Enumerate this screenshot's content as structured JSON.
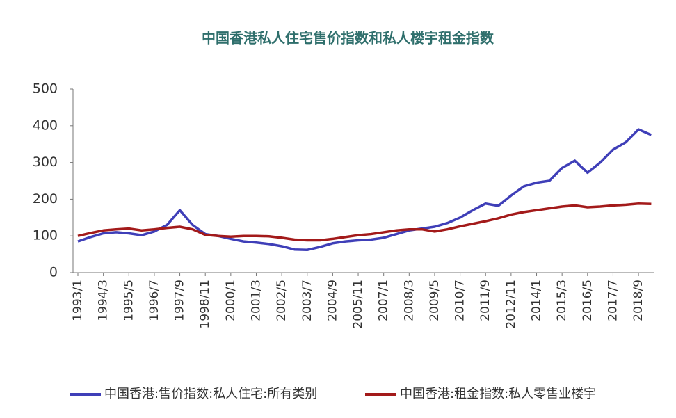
{
  "chart_data": {
    "type": "line",
    "title": "中国香港私人住宅售价指数和私人楼宇租金指数",
    "categories": [
      "1993/1",
      null,
      "1994/3",
      null,
      "1995/5",
      null,
      "1996/7",
      null,
      "1997/9",
      null,
      "1998/11",
      null,
      "2000/1",
      null,
      "2001/3",
      null,
      "2002/5",
      null,
      "2003/7",
      null,
      "2004/9",
      null,
      "2005/11",
      null,
      "2007/1",
      null,
      "2008/3",
      null,
      "2009/5",
      null,
      "2010/7",
      null,
      "2011/9",
      null,
      "2012/11",
      null,
      "2014/1",
      null,
      "2015/3",
      null,
      "2016/5",
      null,
      "2017/7",
      null,
      "2018/9",
      null
    ],
    "series": [
      {
        "name": "中国香港:售价指数:私人住宅:所有类别",
        "color": "#3f3fb8",
        "values": [
          85,
          97,
          107,
          110,
          107,
          102,
          112,
          130,
          170,
          130,
          105,
          100,
          92,
          85,
          82,
          78,
          72,
          63,
          62,
          70,
          80,
          85,
          88,
          90,
          95,
          105,
          115,
          120,
          125,
          135,
          150,
          170,
          188,
          182,
          210,
          235,
          245,
          250,
          285,
          305,
          272,
          300,
          335,
          355,
          390,
          375
        ]
      },
      {
        "name": "中国香港:租金指数:私人零售业楼宇",
        "color": "#a31a1a",
        "values": [
          100,
          108,
          115,
          118,
          120,
          115,
          118,
          122,
          125,
          118,
          103,
          100,
          98,
          100,
          100,
          99,
          95,
          90,
          88,
          88,
          92,
          97,
          102,
          105,
          110,
          115,
          118,
          118,
          112,
          118,
          126,
          133,
          140,
          148,
          158,
          165,
          170,
          175,
          180,
          183,
          178,
          180,
          183,
          185,
          188,
          187
        ]
      }
    ],
    "ylim": [
      0,
      500
    ],
    "yticks": [
      0,
      100,
      200,
      300,
      400,
      500
    ]
  }
}
